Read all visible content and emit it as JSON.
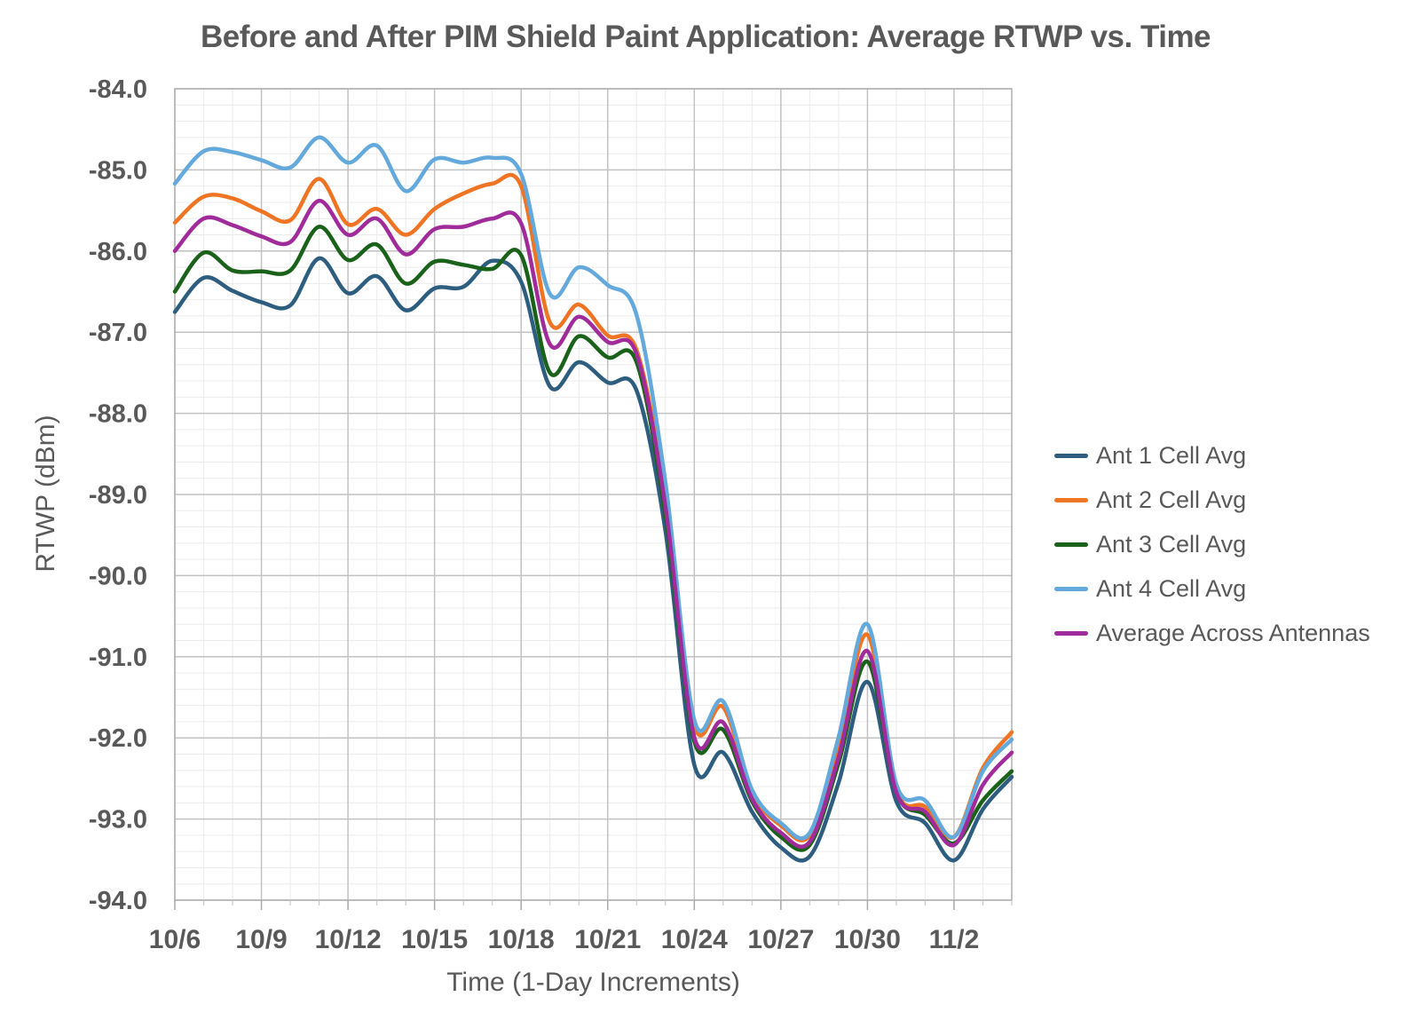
{
  "chart_data": {
    "type": "line",
    "title": "Before and After PIM Shield Paint Application: Average RTWP vs. Time",
    "xlabel": "Time (1-Day Increments)",
    "ylabel": "RTWP (dBm)",
    "ylim": [
      -94.0,
      -84.0
    ],
    "y_major_step": 1.0,
    "y_minor_step": 0.2,
    "x_label_every": 3,
    "grid": "major+minor",
    "legend_position": "right",
    "x": [
      "10/6",
      "10/7",
      "10/8",
      "10/9",
      "10/10",
      "10/11",
      "10/12",
      "10/13",
      "10/14",
      "10/15",
      "10/16",
      "10/17",
      "10/18",
      "10/19",
      "10/20",
      "10/21",
      "10/22",
      "10/23",
      "10/24",
      "10/25",
      "10/26",
      "10/27",
      "10/28",
      "10/29",
      "10/30",
      "10/31",
      "11/1",
      "11/2",
      "11/3",
      "11/4"
    ],
    "x_tick_labels": [
      "10/6",
      "10/9",
      "10/12",
      "10/15",
      "10/18",
      "10/21",
      "10/24",
      "10/27",
      "10/30",
      "11/2"
    ],
    "y_tick_labels": [
      "-84.0",
      "-85.0",
      "-86.0",
      "-87.0",
      "-88.0",
      "-89.0",
      "-90.0",
      "-91.0",
      "-92.0",
      "-93.0",
      "-94.0"
    ],
    "series": [
      {
        "name": "Ant 1 Cell Avg",
        "color": "#2d5d7f",
        "values": [
          -86.75,
          -86.33,
          -86.49,
          -86.63,
          -86.67,
          -86.09,
          -86.52,
          -86.31,
          -86.73,
          -86.46,
          -86.44,
          -86.12,
          -86.38,
          -87.67,
          -87.37,
          -87.62,
          -87.72,
          -89.45,
          -92.33,
          -92.18,
          -92.91,
          -93.35,
          -93.46,
          -92.55,
          -91.31,
          -92.78,
          -93.05,
          -93.51,
          -92.88,
          -92.48
        ]
      },
      {
        "name": "Ant 2 Cell Avg",
        "color": "#ef7423",
        "values": [
          -85.65,
          -85.33,
          -85.35,
          -85.51,
          -85.62,
          -85.11,
          -85.67,
          -85.48,
          -85.8,
          -85.48,
          -85.29,
          -85.17,
          -85.2,
          -86.88,
          -86.66,
          -87.04,
          -87.22,
          -89.05,
          -91.84,
          -91.62,
          -92.67,
          -93.08,
          -93.2,
          -92.1,
          -90.73,
          -92.64,
          -92.85,
          -93.22,
          -92.37,
          -91.93
        ]
      },
      {
        "name": "Ant 3 Cell Avg",
        "color": "#1a611a",
        "values": [
          -86.5,
          -86.02,
          -86.24,
          -86.25,
          -86.24,
          -85.7,
          -86.11,
          -85.92,
          -86.4,
          -86.13,
          -86.17,
          -86.22,
          -86.05,
          -87.5,
          -87.05,
          -87.31,
          -87.37,
          -89.25,
          -92.04,
          -91.9,
          -92.78,
          -93.22,
          -93.32,
          -92.31,
          -91.06,
          -92.67,
          -92.95,
          -93.3,
          -92.77,
          -92.41
        ]
      },
      {
        "name": "Ant 4 Cell Avg",
        "color": "#64a9dc",
        "values": [
          -85.17,
          -84.77,
          -84.78,
          -84.88,
          -84.97,
          -84.6,
          -84.91,
          -84.7,
          -85.26,
          -84.87,
          -84.91,
          -84.85,
          -85.05,
          -86.53,
          -86.2,
          -86.42,
          -86.79,
          -88.85,
          -91.78,
          -91.55,
          -92.64,
          -93.05,
          -93.17,
          -91.99,
          -90.6,
          -92.57,
          -92.77,
          -93.22,
          -92.41,
          -92.02
        ]
      },
      {
        "name": "Average Across Antennas",
        "color": "#a02b9b",
        "values": [
          -86.0,
          -85.6,
          -85.68,
          -85.82,
          -85.89,
          -85.38,
          -85.8,
          -85.6,
          -86.04,
          -85.73,
          -85.7,
          -85.6,
          -85.66,
          -87.15,
          -86.81,
          -87.12,
          -87.27,
          -89.15,
          -91.99,
          -91.81,
          -92.75,
          -93.17,
          -93.28,
          -92.24,
          -90.93,
          -92.67,
          -92.91,
          -93.32,
          -92.58,
          -92.18
        ]
      }
    ],
    "style": {
      "text_color": "#595959",
      "minor_grid_color": "#ebebeb",
      "major_grid_color": "#c2c2c2",
      "border_color": "#b0b0b0",
      "tick_color": "#a8a8a8",
      "background": "#ffffff"
    }
  }
}
